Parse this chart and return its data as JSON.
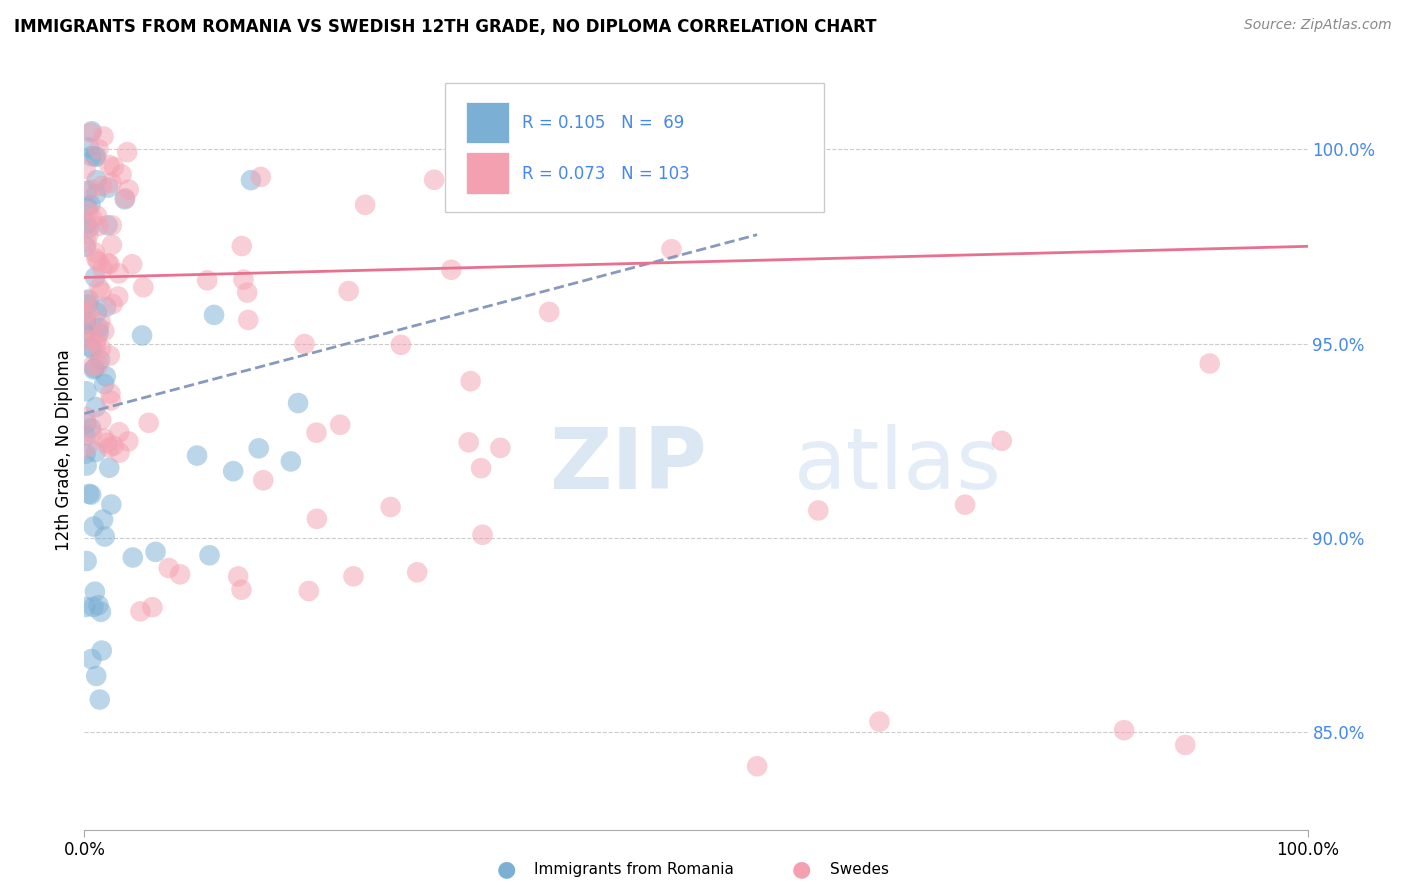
{
  "title": "IMMIGRANTS FROM ROMANIA VS SWEDISH 12TH GRADE, NO DIPLOMA CORRELATION CHART",
  "source": "Source: ZipAtlas.com",
  "ylabel": "12th Grade, No Diploma",
  "x_tick_labels": [
    "0.0%",
    "100.0%"
  ],
  "y_tick_labels_right": [
    "100.0%",
    "95.0%",
    "90.0%",
    "85.0%"
  ],
  "y_tick_positions_right": [
    1.0,
    0.95,
    0.9,
    0.85
  ],
  "legend_bottom": [
    "Immigrants from Romania",
    "Swedes"
  ],
  "r_blue": 0.105,
  "n_blue": 69,
  "r_pink": 0.073,
  "n_pink": 103,
  "blue_color": "#7BAFD4",
  "pink_color": "#F4A0B0",
  "blue_line_color": "#8899BB",
  "pink_line_color": "#E87090",
  "watermark_color": "#C5D8EE",
  "grid_color": "#CCCCCC",
  "right_tick_color": "#4488EE",
  "xlim": [
    0.0,
    1.0
  ],
  "ylim": [
    0.825,
    1.02
  ],
  "blue_trend_x0": 0.0,
  "blue_trend_x1": 0.55,
  "blue_trend_y0": 0.932,
  "blue_trend_y1": 0.978,
  "pink_trend_x0": 0.0,
  "pink_trend_x1": 1.0,
  "pink_trend_y0": 0.967,
  "pink_trend_y1": 0.975
}
